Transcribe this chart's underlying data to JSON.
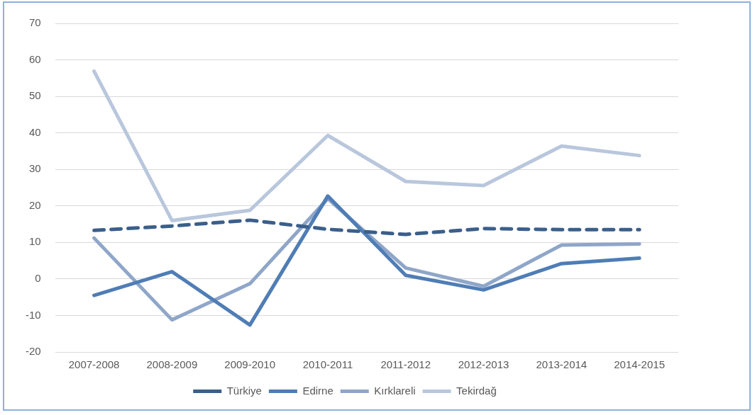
{
  "chart_data": {
    "type": "line",
    "categories": [
      "2007-2008",
      "2008-2009",
      "2009-2010",
      "2010-2011",
      "2011-2012",
      "2012-2013",
      "2013-2014",
      "2014-2015"
    ],
    "series": [
      {
        "name": "Türkiye",
        "color": "#3b5f8a",
        "line_style": "dashed",
        "values": [
          13.3,
          14.5,
          16.1,
          13.6,
          12.2,
          13.8,
          13.5,
          13.5
        ]
      },
      {
        "name": "Edirne",
        "color": "#4f7db5",
        "values": [
          -4.5,
          2.0,
          -12.6,
          22.7,
          1.0,
          -3.0,
          4.2,
          5.7
        ]
      },
      {
        "name": "Kırklareli",
        "color": "#8fa6c9",
        "values": [
          11.2,
          -11.2,
          -1.3,
          22.0,
          3.0,
          -2.0,
          9.3,
          9.6
        ]
      },
      {
        "name": "Tekirdağ",
        "color": "#b9c7dd",
        "values": [
          56.9,
          16.0,
          18.8,
          39.3,
          26.7,
          25.6,
          36.4,
          33.8
        ]
      }
    ],
    "ylim": [
      -20,
      70
    ],
    "yticks": [
      -20,
      -10,
      0,
      10,
      20,
      30,
      40,
      50,
      60,
      70
    ],
    "grid": "y",
    "legend": "bottom",
    "marker": "none",
    "line_style": "solid"
  }
}
